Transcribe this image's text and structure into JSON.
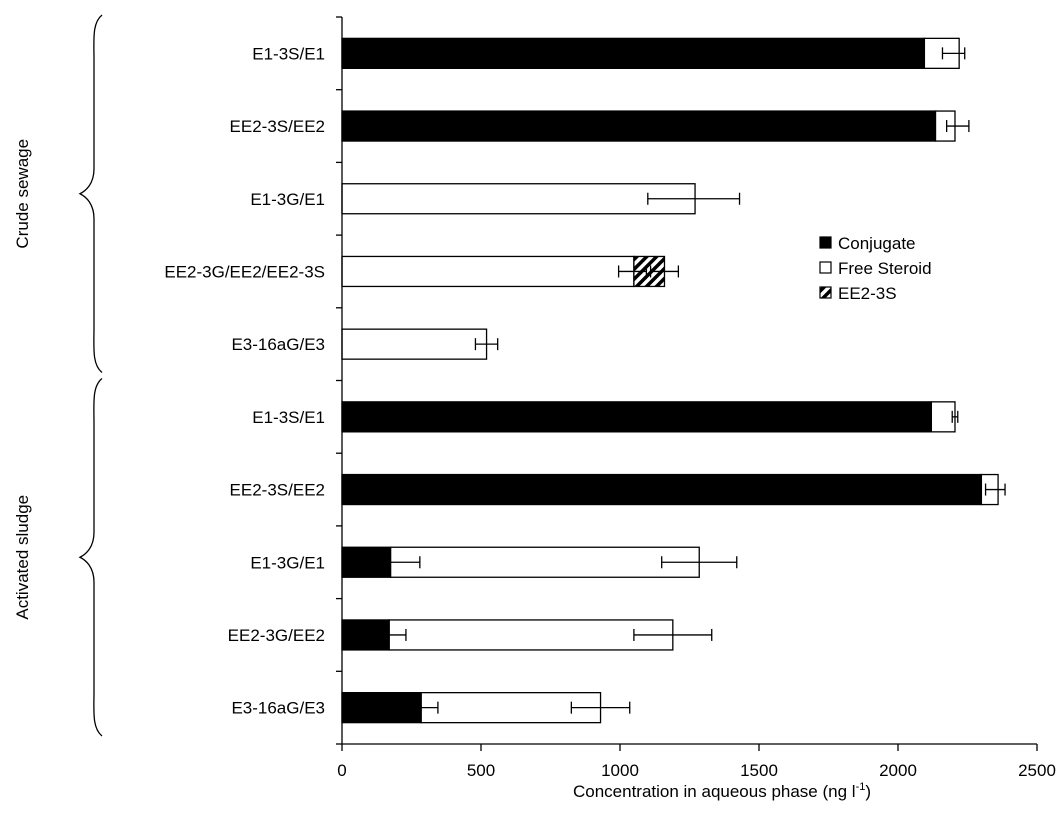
{
  "chart_data": {
    "type": "bar",
    "orientation": "horizontal",
    "stacked": true,
    "xlabel": "Concentration in aqueous phase (ng l",
    "xlabel_sup": "-1",
    "xlabel_end": ")",
    "xlim": [
      0,
      2500
    ],
    "xticks": [
      0,
      500,
      1000,
      1500,
      2000,
      2500
    ],
    "xtick_labels": [
      "0",
      "500",
      "1000",
      "1500",
      "2000",
      "2500"
    ],
    "groups": [
      {
        "label": "Crude sewage",
        "categories": [
          "E1-3S/E1",
          "EE2-3S/EE2",
          "E1-3G/E1",
          "EE2-3G/EE2/EE2-3S",
          "E3-16aG/E3"
        ]
      },
      {
        "label": "Activated sludge",
        "categories": [
          "E1-3S/E1",
          "EE2-3S/EE2",
          "E1-3G/E1",
          "EE2-3G/EE2",
          "E3-16aG/E3"
        ]
      }
    ],
    "categories": [
      "E1-3S/E1",
      "EE2-3S/EE2",
      "E1-3G/E1",
      "EE2-3G/EE2/EE2-3S",
      "E3-16aG/E3",
      "E1-3S/E1",
      "EE2-3S/EE2",
      "E1-3G/E1",
      "EE2-3G/EE2",
      "E3-16aG/E3"
    ],
    "series": [
      {
        "name": "Conjugate",
        "fill": "#000000",
        "values": [
          2095,
          2135,
          0,
          0,
          0,
          2120,
          2300,
          175,
          170,
          285
        ]
      },
      {
        "name": "Free Steroid",
        "fill": "#ffffff",
        "values": [
          125,
          70,
          1270,
          1050,
          520,
          85,
          60,
          1110,
          1020,
          645
        ]
      },
      {
        "name": "EE2-3S",
        "fill": "hatch",
        "values": [
          0,
          0,
          0,
          110,
          0,
          0,
          0,
          0,
          0,
          0
        ]
      }
    ],
    "error_bars": [
      [
        {
          "at": 2200,
          "err": 40
        }
      ],
      [
        {
          "at": 2215,
          "err": 40
        }
      ],
      [
        {
          "at": 1265,
          "err": 165
        }
      ],
      [
        {
          "at": 1045,
          "err": 50
        },
        {
          "at": 1160,
          "err": 50
        }
      ],
      [
        {
          "at": 520,
          "err": 40
        }
      ],
      [
        {
          "at": 2205,
          "err": 10
        }
      ],
      [
        {
          "at": 2350,
          "err": 35
        }
      ],
      [
        {
          "at": 175,
          "err": 105
        },
        {
          "at": 1285,
          "err": 135
        }
      ],
      [
        {
          "at": 170,
          "err": 60
        },
        {
          "at": 1190,
          "err": 140
        }
      ],
      [
        {
          "at": 285,
          "err": 60
        },
        {
          "at": 930,
          "err": 105
        }
      ]
    ],
    "legend": {
      "position": "right",
      "items": [
        "Conjugate",
        "Free Steroid",
        "EE2-3S"
      ]
    }
  }
}
